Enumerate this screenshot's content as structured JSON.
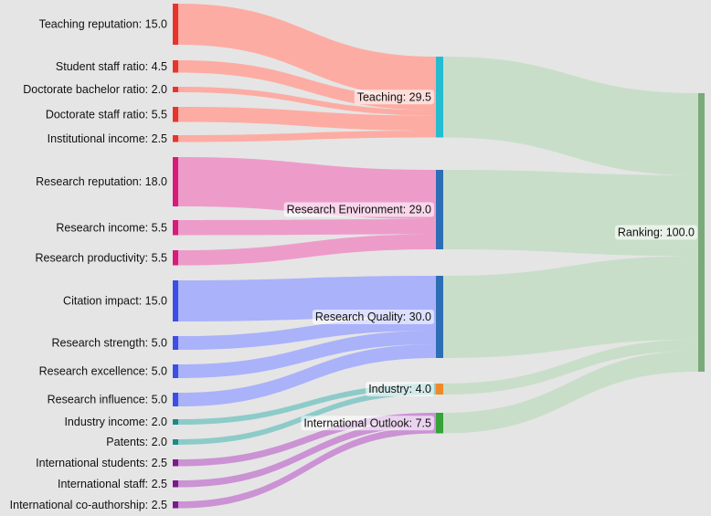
{
  "chart_data": {
    "type": "sankey",
    "units": "weight",
    "nodes": [
      {
        "id": "teaching_reputation",
        "label": "Teaching reputation: 15.0",
        "value": 15.0,
        "color": "#e8342b",
        "column": 0
      },
      {
        "id": "student_staff_ratio",
        "label": "Student staff ratio: 4.5",
        "value": 4.5,
        "color": "#e8342b",
        "column": 0
      },
      {
        "id": "doctorate_bachelor_ratio",
        "label": "Doctorate bachelor ratio: 2.0",
        "value": 2.0,
        "color": "#e8342b",
        "column": 0
      },
      {
        "id": "doctorate_staff_ratio",
        "label": "Doctorate staff ratio: 5.5",
        "value": 5.5,
        "color": "#e8342b",
        "column": 0
      },
      {
        "id": "institutional_income",
        "label": "Institutional income: 2.5",
        "value": 2.5,
        "color": "#e8342b",
        "column": 0
      },
      {
        "id": "research_reputation",
        "label": "Research reputation: 18.0",
        "value": 18.0,
        "color": "#d81b7a",
        "column": 0
      },
      {
        "id": "research_income",
        "label": "Research income: 5.5",
        "value": 5.5,
        "color": "#d81b7a",
        "column": 0
      },
      {
        "id": "research_productivity",
        "label": "Research productivity: 5.5",
        "value": 5.5,
        "color": "#d81b7a",
        "column": 0
      },
      {
        "id": "citation_impact",
        "label": "Citation impact: 15.0",
        "value": 15.0,
        "color": "#3d4ee6",
        "column": 0
      },
      {
        "id": "research_strength",
        "label": "Research strength: 5.0",
        "value": 5.0,
        "color": "#3d4ee6",
        "column": 0
      },
      {
        "id": "research_excellence",
        "label": "Research excellence: 5.0",
        "value": 5.0,
        "color": "#3d4ee6",
        "column": 0
      },
      {
        "id": "research_influence",
        "label": "Research influence: 5.0",
        "value": 5.0,
        "color": "#3d4ee6",
        "column": 0
      },
      {
        "id": "industry_income",
        "label": "Industry income: 2.0",
        "value": 2.0,
        "color": "#1a8a88",
        "column": 0
      },
      {
        "id": "patents",
        "label": "Patents: 2.0",
        "value": 2.0,
        "color": "#1a8a88",
        "column": 0
      },
      {
        "id": "international_students",
        "label": "International students: 2.5",
        "value": 2.5,
        "color": "#7b1a8a",
        "column": 0
      },
      {
        "id": "international_staff",
        "label": "International staff: 2.5",
        "value": 2.5,
        "color": "#7b1a8a",
        "column": 0
      },
      {
        "id": "international_coauthorship",
        "label": "International co-authorship: 2.5",
        "value": 2.5,
        "color": "#7b1a8a",
        "column": 0
      },
      {
        "id": "teaching",
        "label": "Teaching: 29.5",
        "value": 29.5,
        "color": "#25bcd0",
        "column": 1
      },
      {
        "id": "research_environment",
        "label": "Research Environment: 29.0",
        "value": 29.0,
        "color": "#2d6db5",
        "column": 1
      },
      {
        "id": "research_quality",
        "label": "Research Quality: 30.0",
        "value": 30.0,
        "color": "#2d6db5",
        "column": 1
      },
      {
        "id": "industry",
        "label": "Industry: 4.0",
        "value": 4.0,
        "color": "#f0892a",
        "column": 1
      },
      {
        "id": "international_outlook",
        "label": "International Outlook: 7.5",
        "value": 7.5,
        "color": "#35a33a",
        "column": 1
      },
      {
        "id": "ranking",
        "label": "Ranking: 100.0",
        "value": 100.0,
        "color": "#7aa97a",
        "column": 2
      }
    ],
    "links": [
      {
        "source": "teaching_reputation",
        "target": "teaching",
        "value": 15.0,
        "color": "#ffa79d"
      },
      {
        "source": "student_staff_ratio",
        "target": "teaching",
        "value": 4.5,
        "color": "#ffa79d"
      },
      {
        "source": "doctorate_bachelor_ratio",
        "target": "teaching",
        "value": 2.0,
        "color": "#ffa79d"
      },
      {
        "source": "doctorate_staff_ratio",
        "target": "teaching",
        "value": 5.5,
        "color": "#ffa79d"
      },
      {
        "source": "institutional_income",
        "target": "teaching",
        "value": 2.5,
        "color": "#ffa79d"
      },
      {
        "source": "research_reputation",
        "target": "research_environment",
        "value": 18.0,
        "color": "#ee96c8"
      },
      {
        "source": "research_income",
        "target": "research_environment",
        "value": 5.5,
        "color": "#ee96c8"
      },
      {
        "source": "research_productivity",
        "target": "research_environment",
        "value": 5.5,
        "color": "#ee96c8"
      },
      {
        "source": "citation_impact",
        "target": "research_quality",
        "value": 15.0,
        "color": "#a5aefc"
      },
      {
        "source": "research_strength",
        "target": "research_quality",
        "value": 5.0,
        "color": "#a5aefc"
      },
      {
        "source": "research_excellence",
        "target": "research_quality",
        "value": 5.0,
        "color": "#a5aefc"
      },
      {
        "source": "research_influence",
        "target": "research_quality",
        "value": 5.0,
        "color": "#a5aefc"
      },
      {
        "source": "industry_income",
        "target": "industry",
        "value": 2.0,
        "color": "#86c9c7"
      },
      {
        "source": "patents",
        "target": "industry",
        "value": 2.0,
        "color": "#86c9c7"
      },
      {
        "source": "international_students",
        "target": "international_outlook",
        "value": 2.5,
        "color": "#c98bd2"
      },
      {
        "source": "international_staff",
        "target": "international_outlook",
        "value": 2.5,
        "color": "#c98bd2"
      },
      {
        "source": "international_coauthorship",
        "target": "international_outlook",
        "value": 2.5,
        "color": "#c98bd2"
      },
      {
        "source": "teaching",
        "target": "ranking",
        "value": 29.5,
        "color": "#c6ddc5"
      },
      {
        "source": "research_environment",
        "target": "ranking",
        "value": 29.0,
        "color": "#c6ddc5"
      },
      {
        "source": "research_quality",
        "target": "ranking",
        "value": 30.0,
        "color": "#c6ddc5"
      },
      {
        "source": "industry",
        "target": "ranking",
        "value": 4.0,
        "color": "#c6ddc5"
      },
      {
        "source": "international_outlook",
        "target": "ranking",
        "value": 7.5,
        "color": "#c6ddc5"
      }
    ]
  }
}
